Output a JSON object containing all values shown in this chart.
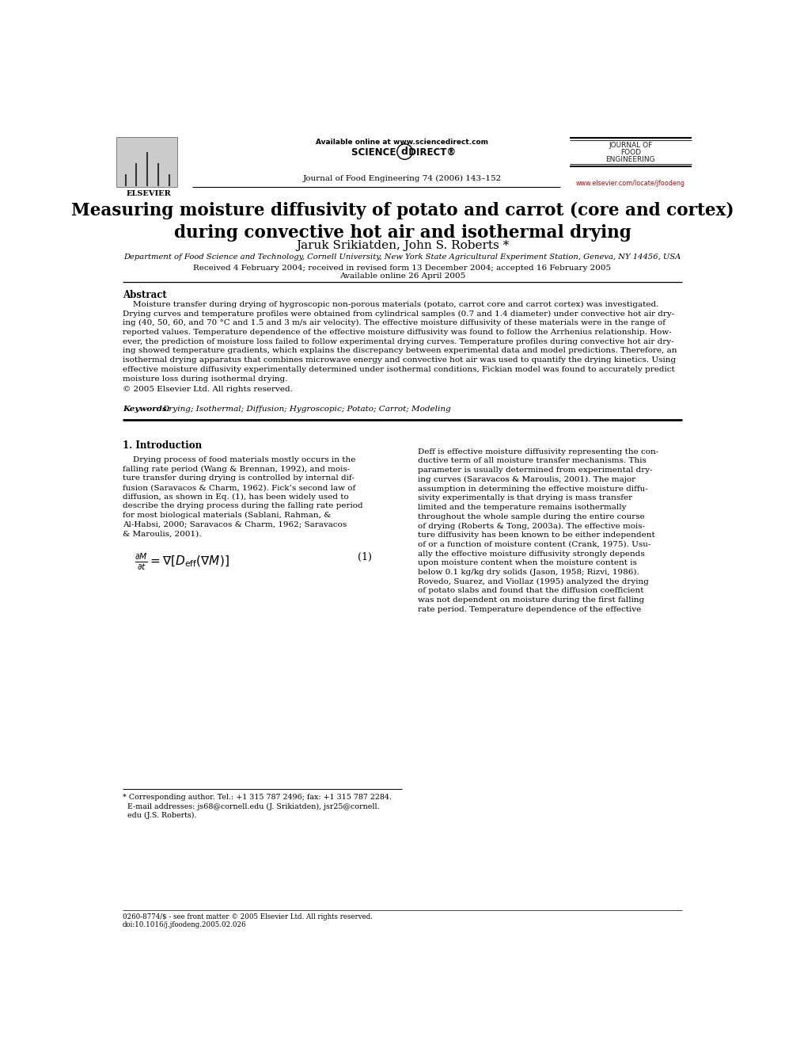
{
  "page_width": 9.92,
  "page_height": 13.23,
  "bg_color": "#ffffff",
  "header": {
    "available_online": "Available online at www.sciencedirect.com",
    "journal_name_line1": "JOURNAL OF",
    "journal_name_line2": "FOOD",
    "journal_name_line3": "ENGINEERING",
    "journal_ref": "Journal of Food Engineering 74 (2006) 143–152",
    "url": "www.elsevier.com/locate/jfoodeng",
    "elsevier_label": "ELSEVIER"
  },
  "title": "Measuring moisture diffusivity of potato and carrot (core and cortex)\nduring convective hot air and isothermal drying",
  "authors": "Jaruk Srikiatden, John S. Roberts *",
  "affiliation": "Department of Food Science and Technology, Cornell University, New York State Agricultural Experiment Station, Geneva, NY 14456, USA",
  "received": "Received 4 February 2004; received in revised form 13 December 2004; accepted 16 February 2005",
  "available": "Available online 26 April 2005",
  "abstract_heading": "Abstract",
  "abstract_text": "Moisture transfer during drying of hygroscopic non-porous materials (potato, carrot core and carrot cortex) was investigated. Drying curves and temperature profiles were obtained from cylindrical samples (0.7 and 1.4 diameter) under convective hot air drying (40, 50, 60, and 70 °C and 1.5 and 3 m/s air velocity). The effective moisture diffusivity of these materials were in the range of reported values. Temperature dependence of the effective moisture diffusivity was found to follow the Arrhenius relationship. However, the prediction of moisture loss failed to follow experimental drying curves. Temperature profiles during convective hot air drying showed temperature gradients, which explains the discrepancy between experimental data and model predictions. Therefore, an isothermal drying apparatus that combines microwave energy and convective hot air was used to quantify the drying kinetics. Using effective moisture diffusivity experimentally determined under isothermal conditions, Fickian model was found to accurately predict moisture loss during isothermal drying.",
  "copyright": "© 2005 Elsevier Ltd. All rights reserved.",
  "keywords_bold": "Keywords:  ",
  "keywords_normal": "Drying; Isothermal; Diffusion; Hygroscopic; Potato; Carrot; Modeling",
  "section1_heading": "1. Introduction",
  "intro_left_para1": "Drying process of food materials mostly occurs in the falling rate period (Wang & Brennan, 1992), and moisture transfer during drying is controlled by internal diffusion (Saravacos & Charm, 1962). Fick’s second law of diffusion, as shown in Eq. (1), has been widely used to describe the drying process during the falling rate period for most biological materials (Sablani, Rahman, & Al-Habsi, 2000; Saravacos & Charm, 1962; Saravacos & Maroulis, 2001).",
  "eq_number": "(1)",
  "intro_right_para1": "Deff is effective moisture diffusivity representing the conductive term of all moisture transfer mechanisms. This parameter is usually determined from experimental drying curves (Saravacos & Maroulis, 2001). The major assumption in determining the effective moisture diffusivity experimentally is that drying is mass transfer limited and the temperature remains isothermally throughout the whole sample during the entire course of drying (Roberts & Tong, 2003a). The effective moisture diffusivity has been known to be either independent of or a function of moisture content (Crank, 1975). Usually the effective moisture diffusivity strongly depends upon moisture content when the moisture content is below 0.1 kg/kg dry solids (Jason, 1958; Rizvi, 1986). Rovedo, Suarez, and Viollaz (1995) analyzed the drying of potato slabs and found that the diffusion coefficient was not dependent on moisture during the first falling rate period. Temperature dependence of the effective",
  "footnote_line1": "* Corresponding author. Tel.: +1 315 787 2496; fax: +1 315 787 2284.",
  "footnote_line2": "  E-mail addresses: js68@cornell.edu (J. Srikiatden), jsr25@cornell.",
  "footnote_line3": "  edu (J.S. Roberts).",
  "bottom_left_line1": "0260-8774/$ - see front matter © 2005 Elsevier Ltd. All rights reserved.",
  "bottom_left_line2": "doi:10.1016/j.jfoodeng.2005.02.026"
}
